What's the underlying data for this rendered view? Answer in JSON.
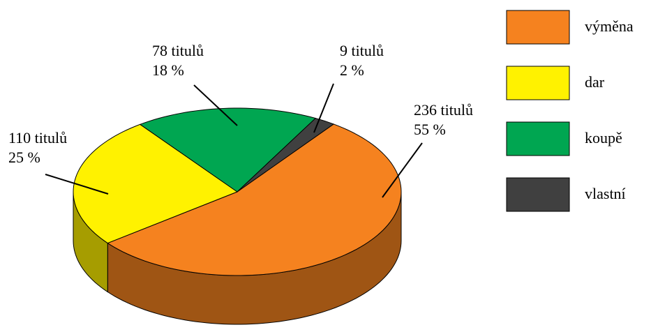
{
  "chart_data": {
    "type": "pie",
    "style": "3d",
    "categories": [
      "výměna",
      "dar",
      "koupě",
      "vlastní"
    ],
    "values": [
      236,
      110,
      78,
      9
    ],
    "value_labels": [
      "236 titulů",
      "110 titulů",
      "78 titulů",
      "9 titulů"
    ],
    "percents": [
      55,
      25,
      18,
      2
    ],
    "percent_labels": [
      "55 %",
      "25 %",
      "18 %",
      "2 %"
    ],
    "colors": [
      "#f5821f",
      "#fff200",
      "#00a651",
      "#404040"
    ],
    "legend": "right"
  }
}
